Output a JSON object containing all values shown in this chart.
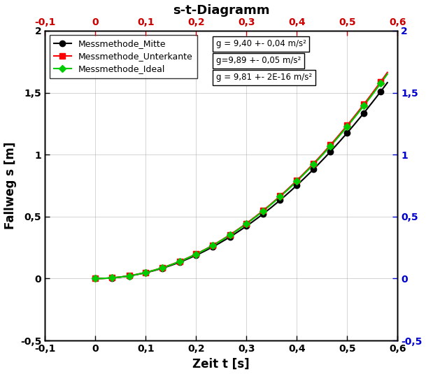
{
  "title": "s-t-Diagramm",
  "xlabel": "Zeit t [s]",
  "ylabel": "Fallweg s [m]",
  "xlim": [
    -0.1,
    0.6
  ],
  "ylim": [
    -0.5,
    2.0
  ],
  "xticks": [
    -0.1,
    0.0,
    0.1,
    0.2,
    0.3,
    0.4,
    0.5,
    0.6
  ],
  "yticks": [
    -0.5,
    0.0,
    0.5,
    1.0,
    1.5,
    2.0
  ],
  "g_mitte": 9.4,
  "g_unterkante": 9.89,
  "g_ideal": 9.81,
  "t_points": [
    0.0,
    0.033,
    0.067,
    0.1,
    0.133,
    0.167,
    0.2,
    0.233,
    0.267,
    0.3,
    0.333,
    0.367,
    0.4,
    0.433,
    0.467,
    0.5,
    0.533,
    0.567
  ],
  "color_mitte": "#000000",
  "color_unterkante": "#ff0000",
  "color_ideal": "#00cc00",
  "legend_labels": [
    "Messmethode_Mitte",
    "Messmethode_Unterkante",
    "Messmethode_Ideal"
  ],
  "annotation1": "g = 9,40 +- 0,04 m/s²",
  "annotation2": "g=9,89 +- 0,05 m/s²",
  "annotation3": "g = 9,81 +- 2E-16 m/s²",
  "ann_text_color": "#000000",
  "top_tick_color": "#cc0000",
  "right_tick_color": "#0000cc"
}
